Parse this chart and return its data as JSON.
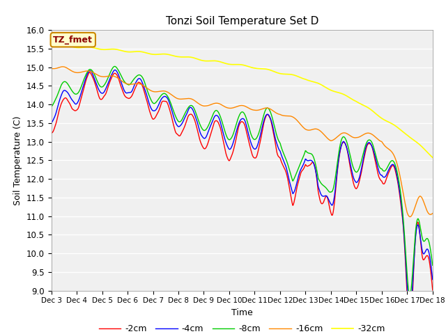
{
  "title": "Tonzi Soil Temperature Set D",
  "xlabel": "Time",
  "ylabel": "Soil Temperature (C)",
  "ylim": [
    9.0,
    16.0
  ],
  "yticks": [
    9.0,
    9.5,
    10.0,
    10.5,
    11.0,
    11.5,
    12.0,
    12.5,
    13.0,
    13.5,
    14.0,
    14.5,
    15.0,
    15.5,
    16.0
  ],
  "xtick_labels": [
    "Dec 3",
    "Dec 4",
    "Dec 5",
    "Dec 6",
    "Dec 7",
    "Dec 8",
    "Dec 9",
    "Dec 10",
    "Dec 11",
    "Dec 12",
    "Dec 13",
    "Dec 14",
    "Dec 15",
    "Dec 16",
    "Dec 17",
    "Dec 18"
  ],
  "legend_labels": [
    "-2cm",
    "-4cm",
    "-8cm",
    "-16cm",
    "-32cm"
  ],
  "colors": [
    "#ff0000",
    "#0000ff",
    "#00cc00",
    "#ff8800",
    "#ffff00"
  ],
  "line_widths": [
    1.0,
    1.0,
    1.0,
    1.0,
    1.2
  ],
  "bg_color": "#e8e8e8",
  "plot_bg": "#f0f0f0",
  "annotation_text": "TZ_fmet",
  "annotation_bg": "#ffffcc",
  "annotation_border": "#cc8800"
}
